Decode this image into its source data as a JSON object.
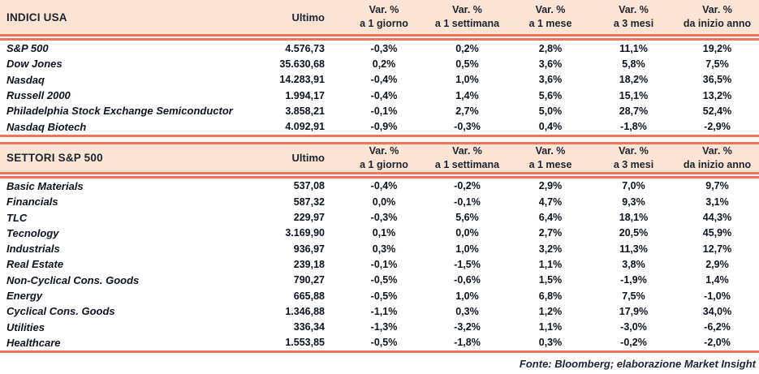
{
  "colors": {
    "coral": "#F0735A",
    "peach": "#FBE4D3",
    "header_text": "#1C2430",
    "body_text": "#0E131C"
  },
  "sections": [
    {
      "title": "INDICI USA",
      "ultimo_label": "Ultimo",
      "var_columns": [
        {
          "top": "Var. %",
          "bottom": "a 1 giorno"
        },
        {
          "top": "Var. %",
          "bottom": "a 1 settimana"
        },
        {
          "top": "Var. %",
          "bottom": "a 1 mese"
        },
        {
          "top": "Var. %",
          "bottom": "a 3 mesi"
        },
        {
          "top": "Var. %",
          "bottom": "da inizio anno"
        }
      ],
      "rows": [
        {
          "name": "S&P 500",
          "ultimo": "4.576,73",
          "vars": [
            "-0,3%",
            "0,2%",
            "2,8%",
            "11,1%",
            "19,2%"
          ]
        },
        {
          "name": "Dow Jones",
          "ultimo": "35.630,68",
          "vars": [
            "0,2%",
            "0,5%",
            "3,6%",
            "5,8%",
            "7,5%"
          ]
        },
        {
          "name": "Nasdaq",
          "ultimo": "14.283,91",
          "vars": [
            "-0,4%",
            "1,0%",
            "3,6%",
            "18,2%",
            "36,5%"
          ]
        },
        {
          "name": "Russell 2000",
          "ultimo": "1.994,17",
          "vars": [
            "-0,4%",
            "1,4%",
            "5,6%",
            "15,1%",
            "13,2%"
          ]
        },
        {
          "name": "Philadelphia Stock Exchange Semiconductor",
          "ultimo": "3.858,21",
          "vars": [
            "-0,1%",
            "2,7%",
            "5,0%",
            "28,7%",
            "52,4%"
          ]
        },
        {
          "name": "Nasdaq Biotech",
          "ultimo": "4.092,91",
          "vars": [
            "-0,9%",
            "-0,3%",
            "0,4%",
            "-1,8%",
            "-2,9%"
          ]
        }
      ]
    },
    {
      "title": "SETTORI S&P 500",
      "ultimo_label": "Ultimo",
      "var_columns": [
        {
          "top": "Var. %",
          "bottom": "a 1 giorno"
        },
        {
          "top": "Var. %",
          "bottom": "a 1 settimana"
        },
        {
          "top": "Var. %",
          "bottom": "a 1 mese"
        },
        {
          "top": "Var. %",
          "bottom": "a 3 mesi"
        },
        {
          "top": "Var. %",
          "bottom": "da inizio anno"
        }
      ],
      "rows": [
        {
          "name": "Basic Materials",
          "ultimo": "537,08",
          "vars": [
            "-0,4%",
            "-0,2%",
            "2,9%",
            "7,0%",
            "9,7%"
          ]
        },
        {
          "name": "Financials",
          "ultimo": "587,32",
          "vars": [
            "0,0%",
            "-0,1%",
            "4,7%",
            "9,3%",
            "3,1%"
          ]
        },
        {
          "name": "TLC",
          "ultimo": "229,97",
          "vars": [
            "-0,3%",
            "5,6%",
            "6,4%",
            "18,1%",
            "44,3%"
          ]
        },
        {
          "name": "Tecnology",
          "ultimo": "3.169,90",
          "vars": [
            "0,1%",
            "0,0%",
            "2,7%",
            "20,5%",
            "45,9%"
          ]
        },
        {
          "name": "Industrials",
          "ultimo": "936,97",
          "vars": [
            "0,3%",
            "1,0%",
            "3,2%",
            "11,3%",
            "12,7%"
          ]
        },
        {
          "name": "Real Estate",
          "ultimo": "239,18",
          "vars": [
            "-0,1%",
            "-1,5%",
            "1,1%",
            "3,8%",
            "2,9%"
          ]
        },
        {
          "name": "Non-Cyclical Cons. Goods",
          "ultimo": "790,27",
          "vars": [
            "-0,5%",
            "-0,6%",
            "1,5%",
            "-1,9%",
            "1,4%"
          ]
        },
        {
          "name": "Energy",
          "ultimo": "665,88",
          "vars": [
            "-0,5%",
            "1,0%",
            "6,8%",
            "7,5%",
            "-1,0%"
          ]
        },
        {
          "name": "Cyclical Cons. Goods",
          "ultimo": "1.346,88",
          "vars": [
            "-1,1%",
            "0,3%",
            "1,2%",
            "17,9%",
            "34,0%"
          ]
        },
        {
          "name": "Utilities",
          "ultimo": "336,34",
          "vars": [
            "-1,3%",
            "-3,2%",
            "1,1%",
            "-3,0%",
            "-6,2%"
          ]
        },
        {
          "name": "Healthcare",
          "ultimo": "1.553,85",
          "vars": [
            "-0,5%",
            "-1,8%",
            "0,3%",
            "-0,2%",
            "-2,0%"
          ]
        }
      ]
    }
  ],
  "footer": {
    "source_note": "Fonte: Bloomberg; elaborazione Market Insight"
  }
}
